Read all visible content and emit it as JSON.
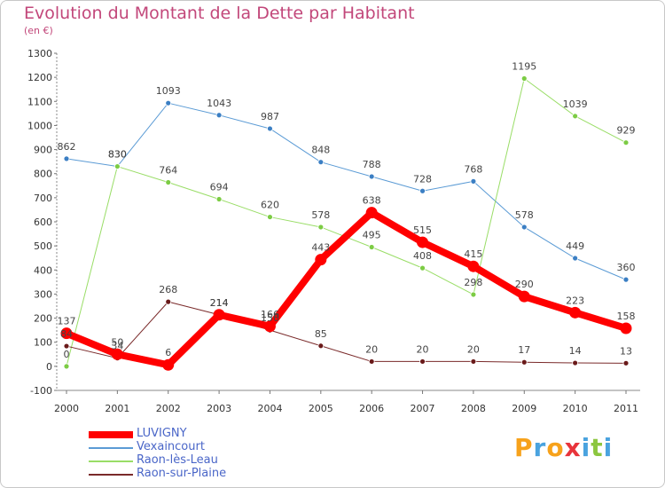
{
  "chart_data": {
    "type": "line",
    "title": "Evolution du Montant de la Dette par Habitant",
    "subtitle": "(en €)",
    "x": [
      "2000",
      "2001",
      "2002",
      "2003",
      "2004",
      "2005",
      "2006",
      "2007",
      "2008",
      "2009",
      "2010",
      "2011"
    ],
    "ylim": [
      -100,
      1300
    ],
    "yticks": [
      -100,
      0,
      100,
      200,
      300,
      400,
      500,
      600,
      700,
      800,
      900,
      1000,
      1100,
      1200,
      1300
    ],
    "grid": false,
    "legend_position": "bottom-left",
    "series": [
      {
        "name": "LUVIGNY",
        "color": "#ff0000",
        "width": 8,
        "values": [
          137,
          50,
          6,
          214,
          166,
          443,
          638,
          515,
          415,
          290,
          223,
          158
        ],
        "labels": [
          "137",
          "50",
          "6",
          "214",
          "166",
          "443",
          "638",
          "515",
          "415",
          "290",
          "223",
          "158"
        ]
      },
      {
        "name": "Vexaincourt",
        "color": "#5b9bd5",
        "marker": "#3b7fc4",
        "width": 1,
        "values": [
          862,
          830,
          1093,
          1043,
          987,
          848,
          788,
          728,
          768,
          578,
          449,
          360
        ],
        "labels": [
          "862",
          "830",
          "1093",
          "1043",
          "987",
          "848",
          "788",
          "728",
          "768",
          "578",
          "449",
          "360"
        ]
      },
      {
        "name": "Raon-lès-Leau",
        "color": "#99dd66",
        "marker": "#7ccc44",
        "width": 1,
        "values": [
          0,
          830,
          764,
          694,
          620,
          578,
          495,
          408,
          298,
          1195,
          1039,
          929
        ],
        "labels": [
          "0",
          "830",
          "764",
          "694",
          "620",
          "578",
          "495",
          "408",
          "298",
          "1195",
          "1039",
          "929"
        ]
      },
      {
        "name": "Raon-sur-Plaine",
        "color": "#7a2a2a",
        "marker": "#6a1a1a",
        "width": 1,
        "values": [
          84,
          34,
          268,
          214,
          150,
          85,
          20,
          20,
          20,
          17,
          14,
          13
        ],
        "labels": [
          "84",
          "34",
          "268",
          "214",
          "150",
          "85",
          "20",
          "20",
          "20",
          "17",
          "14",
          "13"
        ]
      }
    ]
  },
  "brand": {
    "logo_letters": [
      "P",
      "r",
      "o",
      "x",
      "i",
      "t",
      "i"
    ],
    "logo_colors": [
      "#f7a21b",
      "#4aa3df",
      "#f7a21b",
      "#e8343b",
      "#4aa3df",
      "#8cc63f",
      "#4aa3df"
    ]
  }
}
